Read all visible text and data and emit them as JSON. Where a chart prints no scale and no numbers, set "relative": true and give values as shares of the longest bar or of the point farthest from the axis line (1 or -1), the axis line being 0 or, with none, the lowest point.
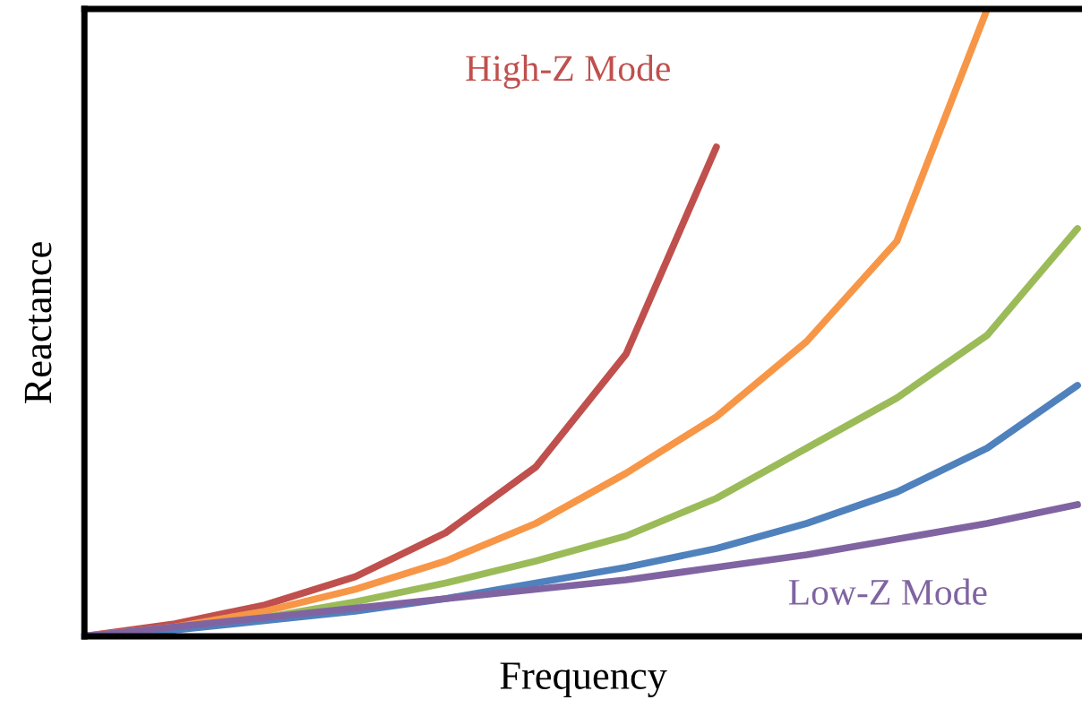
{
  "chart_data": {
    "type": "line",
    "relative": true,
    "xlabel": "Frequency",
    "ylabel": "Reactance",
    "legend": false,
    "marker": "none",
    "line_style": "solid",
    "categories": [
      null,
      null,
      null,
      null,
      null,
      null,
      null,
      null,
      null,
      null,
      null,
      null
    ],
    "series": [
      {
        "name": "High-Z Mode",
        "color": "#c0504d",
        "values": [
          0,
          0.02,
          0.05,
          0.095,
          0.165,
          0.27,
          0.45,
          0.78,
          null,
          null,
          null,
          null
        ]
      },
      {
        "color": "#f79646",
        "values": [
          0,
          0.015,
          0.04,
          0.075,
          0.12,
          0.18,
          0.26,
          0.35,
          0.47,
          0.63,
          1.0,
          null
        ]
      },
      {
        "color": "#9bbb59",
        "values": [
          0,
          0.012,
          0.03,
          0.055,
          0.085,
          0.12,
          0.16,
          0.22,
          0.3,
          0.38,
          0.48,
          0.65
        ]
      },
      {
        "color": "#4f81bd",
        "values": [
          0,
          0.01,
          0.025,
          0.04,
          0.06,
          0.085,
          0.11,
          0.14,
          0.18,
          0.23,
          0.3,
          0.4
        ]
      },
      {
        "name": "Low-Z Mode",
        "color": "#8064a2",
        "values": [
          0,
          0.015,
          0.03,
          0.045,
          0.06,
          0.075,
          0.09,
          0.11,
          0.13,
          0.155,
          0.18,
          0.21
        ]
      }
    ]
  }
}
